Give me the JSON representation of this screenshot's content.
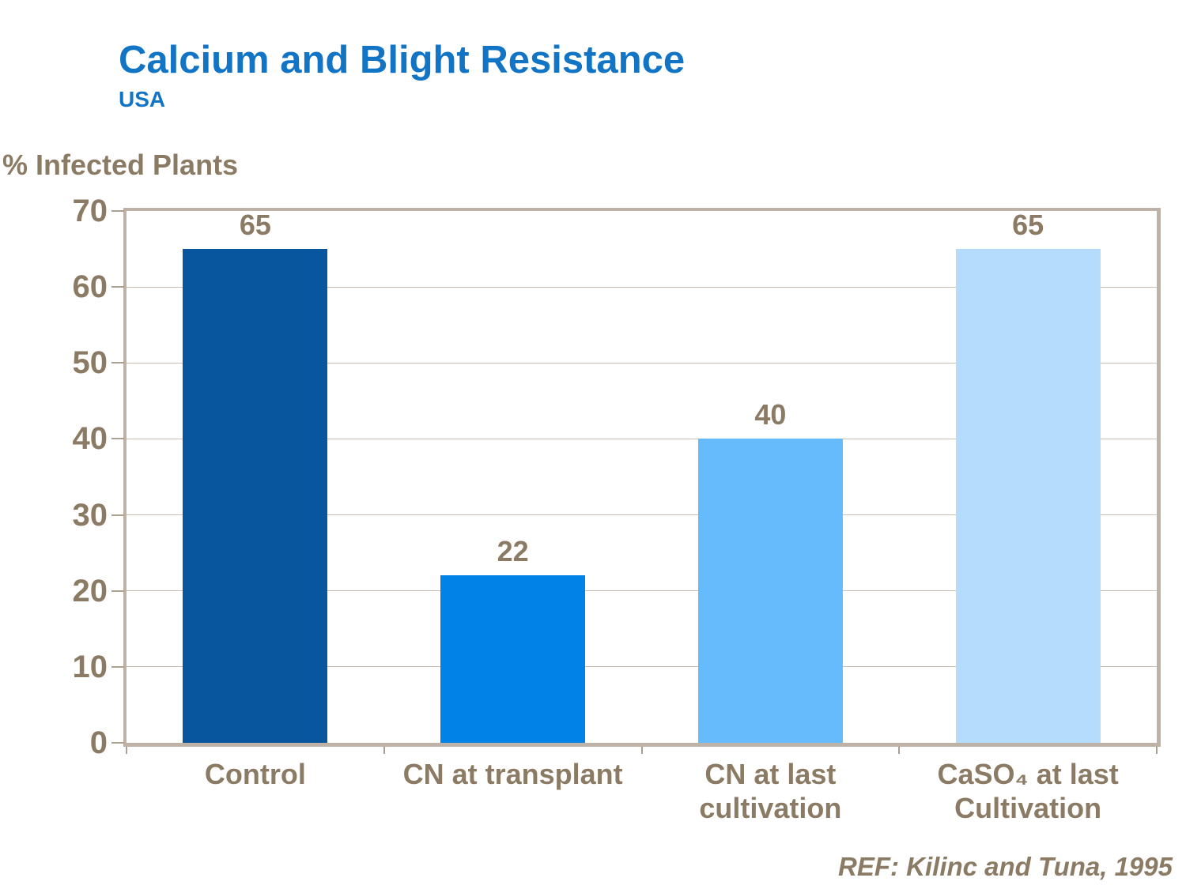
{
  "colors": {
    "title_blue": "#1274C5",
    "label_brown": "#8B7B64",
    "frame_tan": "#BDB2A5",
    "gridline_tan": "#C8BDB0"
  },
  "chart_data": {
    "type": "bar",
    "title": "Calcium and Blight Resistance",
    "subtitle": "USA",
    "ylabel": "% Infected Plants",
    "xlabel": "",
    "categories": [
      "Control",
      "CN at transplant",
      "CN at last\ncultivation",
      "CaSO₄ at last\nCultivation"
    ],
    "values": [
      65,
      22,
      40,
      65
    ],
    "value_labels": [
      "65",
      "22",
      "40",
      "65"
    ],
    "bar_colors": [
      "#08579E",
      "#0082E6",
      "#66BBFC",
      "#B6DCFD"
    ],
    "ylim": [
      0,
      70
    ],
    "yticks": [
      0,
      10,
      20,
      30,
      40,
      50,
      60,
      70
    ],
    "grid": true,
    "legend": "none",
    "annotations": [
      "REF: Kilinc and Tuna, 1995"
    ]
  }
}
